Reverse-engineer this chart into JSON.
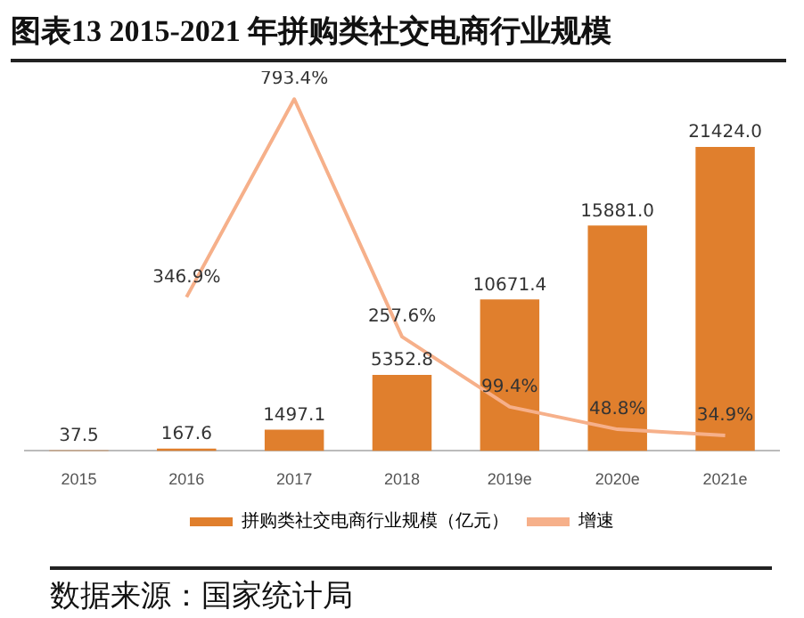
{
  "chart_data": {
    "type": "bar",
    "title": "图表13 2015-2021 年拼购类社交电商行业规模",
    "categories": [
      "2015",
      "2016",
      "2017",
      "2018",
      "2019e",
      "2020e",
      "2021e"
    ],
    "series": [
      {
        "name": "拼购类社交电商行业规模（亿元）",
        "color": "#e07f2d",
        "values": [
          37.5,
          167.6,
          1497.1,
          5352.8,
          10671.4,
          15881.0,
          21424.0
        ],
        "value_labels": [
          "37.5",
          "167.6",
          "1497.1",
          "5352.8",
          "10671.4",
          "15881.0",
          "21424.0"
        ]
      },
      {
        "name": "增速",
        "type": "line",
        "axis": "y2",
        "color": "#f6b08a",
        "values": [
          null,
          346.9,
          793.4,
          257.6,
          99.4,
          48.8,
          34.9
        ],
        "value_labels": [
          null,
          "346.9%",
          "793.4%",
          "257.6%",
          "99.4%",
          "48.8%",
          "34.9%"
        ]
      }
    ],
    "tick_labels": "x",
    "grid": false,
    "legend": "bottom",
    "marker": "none",
    "annotations": [
      "数据来源：国家统计局"
    ]
  }
}
